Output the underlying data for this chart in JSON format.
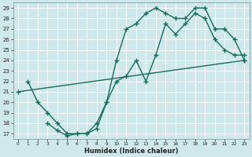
{
  "title": "",
  "xlabel": "Humidex (Indice chaleur)",
  "bg_color": "#cfe8ec",
  "grid_color": "#b0d4da",
  "line_color": "#1a6b5a",
  "xlim": [
    -0.5,
    23.5
  ],
  "ylim": [
    16.5,
    29.5
  ],
  "yticks": [
    17,
    18,
    19,
    20,
    21,
    22,
    23,
    24,
    25,
    26,
    27,
    28,
    29
  ],
  "xticks": [
    0,
    1,
    2,
    3,
    4,
    5,
    6,
    7,
    8,
    9,
    10,
    11,
    12,
    13,
    14,
    15,
    16,
    17,
    18,
    19,
    20,
    21,
    22,
    23
  ],
  "line1_x": [
    1,
    2,
    3,
    4,
    5,
    6,
    7,
    8,
    9,
    10,
    11,
    12,
    13,
    14,
    15,
    16,
    17,
    18,
    19,
    20,
    21,
    22,
    23
  ],
  "line1_y": [
    22,
    20,
    19,
    18,
    17,
    17,
    17,
    18,
    20,
    24,
    27,
    27.5,
    28.5,
    29,
    28.5,
    28,
    28,
    29,
    29,
    27,
    27,
    26,
    24
  ],
  "line2_x": [
    0,
    23
  ],
  "line2_y": [
    21,
    24
  ],
  "line3_x": [
    3,
    4,
    5,
    6,
    7,
    8,
    9,
    10,
    11,
    12,
    13,
    14,
    15,
    16,
    17,
    18,
    19,
    20,
    21,
    22,
    23
  ],
  "line3_y": [
    18,
    17.3,
    16.8,
    17,
    17,
    17.5,
    20,
    22,
    22.5,
    24,
    22,
    24.5,
    27.5,
    26.5,
    27.5,
    28.5,
    28,
    26,
    25,
    24.5,
    24.5
  ],
  "marker": "+",
  "markersize": 4,
  "linewidth": 1.0
}
